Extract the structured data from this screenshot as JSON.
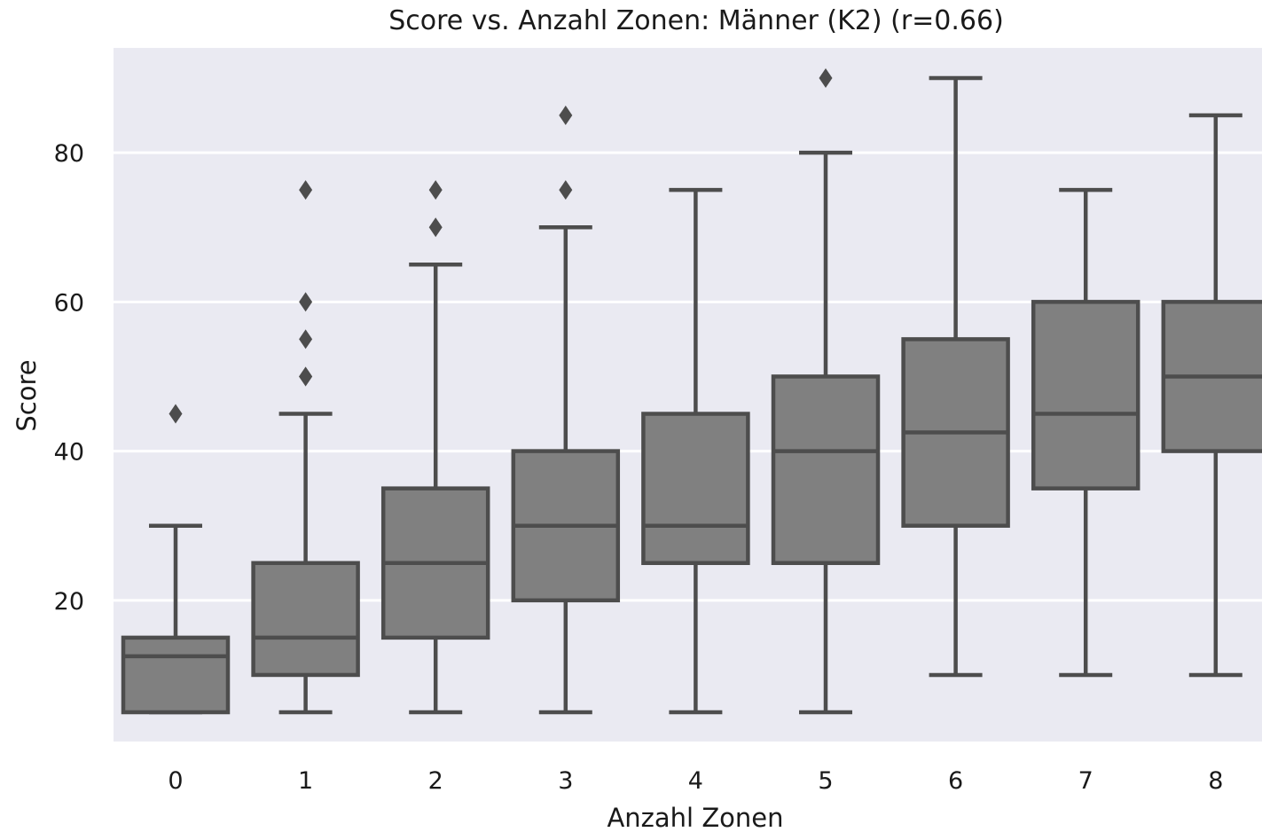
{
  "chart_data": {
    "type": "boxplot",
    "title": "Score vs. Anzahl Zonen: Männer (K2) (r=0.66)",
    "xlabel": "Anzahl Zonen",
    "ylabel": "Score",
    "categories": [
      "0",
      "1",
      "2",
      "3",
      "4",
      "5",
      "6",
      "7",
      "8"
    ],
    "ylim": [
      1,
      94
    ],
    "yticks": [
      20,
      40,
      60,
      80
    ],
    "grid": "horizontal",
    "colors": {
      "background": "#eaeaf2",
      "grid": "#ffffff",
      "box_fill": "#808080",
      "line": "#4d4d4d"
    },
    "boxes": [
      {
        "category": "0",
        "whisker_low": 5,
        "q1": 5,
        "median": 12.5,
        "q3": 15,
        "whisker_high": 30,
        "outliers": [
          45
        ]
      },
      {
        "category": "1",
        "whisker_low": 5,
        "q1": 10,
        "median": 15,
        "q3": 25,
        "whisker_high": 45,
        "outliers": [
          50,
          50,
          55,
          60,
          75
        ]
      },
      {
        "category": "2",
        "whisker_low": 5,
        "q1": 15,
        "median": 25,
        "q3": 35,
        "whisker_high": 65,
        "outliers": [
          70,
          75
        ]
      },
      {
        "category": "3",
        "whisker_low": 5,
        "q1": 20,
        "median": 30,
        "q3": 40,
        "whisker_high": 70,
        "outliers": [
          75,
          85
        ]
      },
      {
        "category": "4",
        "whisker_low": 5,
        "q1": 25,
        "median": 30,
        "q3": 45,
        "whisker_high": 75,
        "outliers": []
      },
      {
        "category": "5",
        "whisker_low": 5,
        "q1": 25,
        "median": 40,
        "q3": 50,
        "whisker_high": 80,
        "outliers": [
          90
        ]
      },
      {
        "category": "6",
        "whisker_low": 10,
        "q1": 30,
        "median": 42.5,
        "q3": 55,
        "whisker_high": 90,
        "outliers": []
      },
      {
        "category": "7",
        "whisker_low": 10,
        "q1": 35,
        "median": 45,
        "q3": 60,
        "whisker_high": 75,
        "outliers": []
      },
      {
        "category": "8",
        "whisker_low": 10,
        "q1": 40,
        "median": 50,
        "q3": 60,
        "whisker_high": 85,
        "outliers": []
      }
    ]
  }
}
